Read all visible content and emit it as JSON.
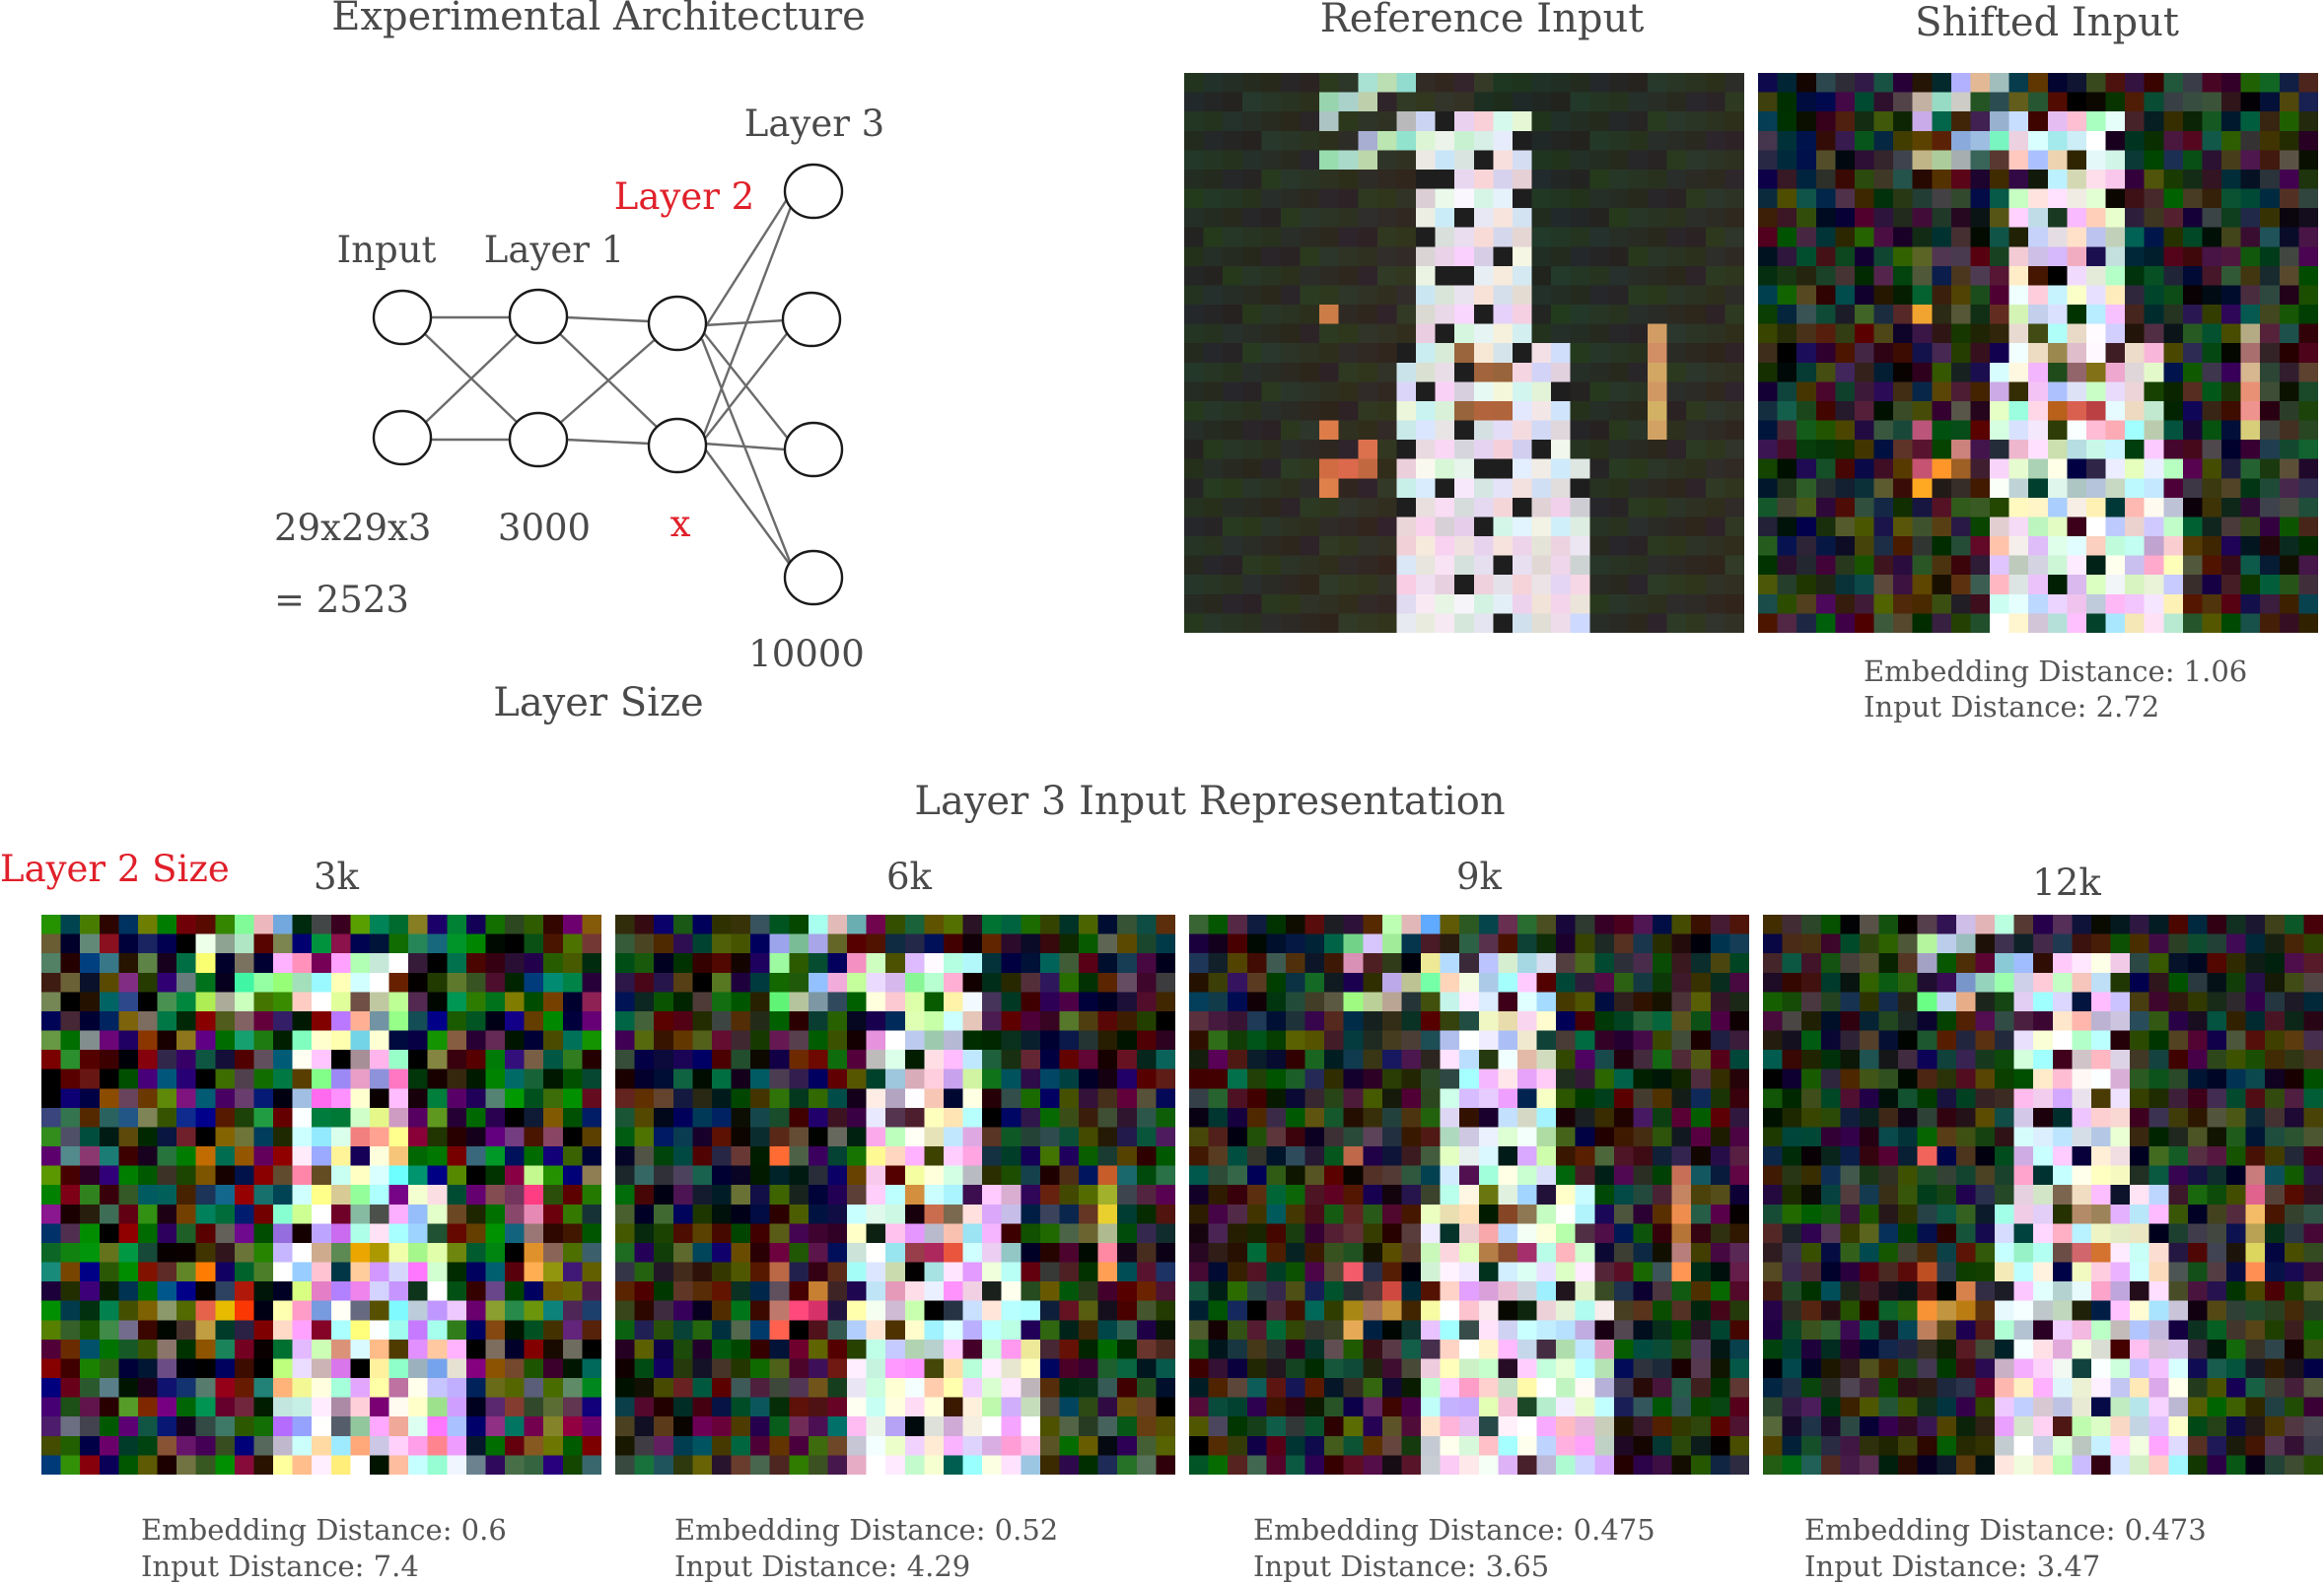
{
  "architecture": {
    "title": "Experimental Architecture",
    "nodes_labels": {
      "input": "Input",
      "layer1": "Layer 1",
      "layer2": "Layer 2",
      "layer3": "Layer 3"
    },
    "sizes": {
      "input_line1": "29x29x3",
      "input_line2": "= 2523",
      "layer1": "3000",
      "layer2": "x",
      "layer3": "10000"
    },
    "caption": "Layer Size"
  },
  "reference": {
    "title": "Reference Input"
  },
  "shifted": {
    "title": "Shifted Input",
    "embedding_distance": "Embedding Distance:  1.06",
    "input_distance": "Input Distance: 2.72"
  },
  "representation": {
    "title": "Layer 3 Input Representation",
    "row_label": "Layer 2 Size",
    "panels": [
      {
        "label": "3k",
        "embedding_distance": "Embedding Distance: 0.6",
        "input_distance": "Input Distance: 7.4",
        "noise": 0.95
      },
      {
        "label": "6k",
        "embedding_distance": "Embedding Distance: 0.52",
        "input_distance": "Input Distance: 4.29",
        "noise": 0.6
      },
      {
        "label": "9k",
        "embedding_distance": "Embedding Distance: 0.475",
        "input_distance": "Input Distance: 3.65",
        "noise": 0.5
      },
      {
        "label": "12k",
        "embedding_distance": "Embedding Distance: 0.473",
        "input_distance": "Input Distance: 3.47",
        "noise": 0.45
      }
    ]
  },
  "colors": {
    "text": "#4a4a4a",
    "highlight": "#e0202a",
    "lines": "#6b6b6b"
  }
}
